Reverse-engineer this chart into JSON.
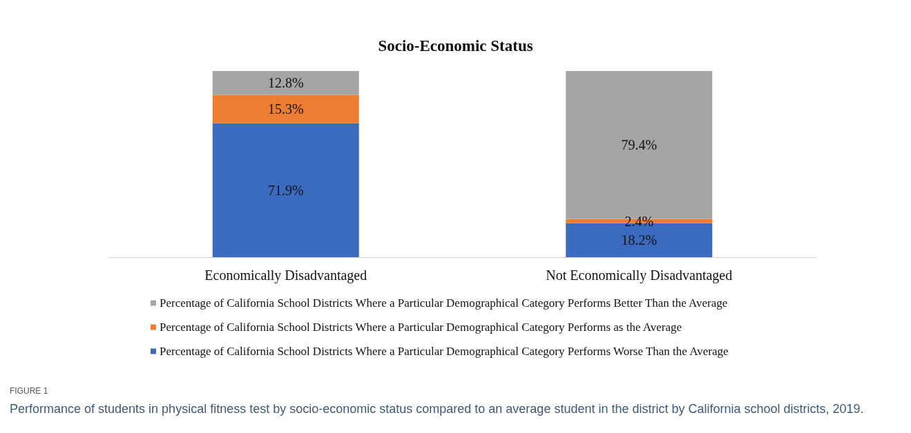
{
  "chart_data": {
    "type": "bar",
    "title": "Socio-Economic Status",
    "stacked": true,
    "legend": "bottom",
    "categories": [
      "Economically Disadvantaged",
      "Not Economically Disadvantaged"
    ],
    "series": [
      {
        "name": "Percentage of California School Districts Where a Particular Demographical Category Performs Worse Than the Average",
        "color": "#3a6bbf",
        "values": [
          71.9,
          18.2
        ],
        "value_labels": [
          "71.9%",
          "18.2%"
        ]
      },
      {
        "name": "Percentage of California School Districts Where a Particular Demographical Category Performs as the Average",
        "color": "#ed7d31",
        "values": [
          15.3,
          2.4
        ],
        "value_labels": [
          "15.3%",
          "2.4%"
        ]
      },
      {
        "name": "Percentage of California School Districts Where a Particular Demographical Category Performs Better Than the Average",
        "color": "#a5a5a5",
        "values": [
          12.8,
          79.4
        ],
        "value_labels": [
          "12.8%",
          "79.4%"
        ]
      }
    ],
    "annotations": [
      "FIGURE 1",
      "Performance of students in physical fitness test by socio-economic status compared to an average student in the district by California school districts, 2019."
    ]
  }
}
